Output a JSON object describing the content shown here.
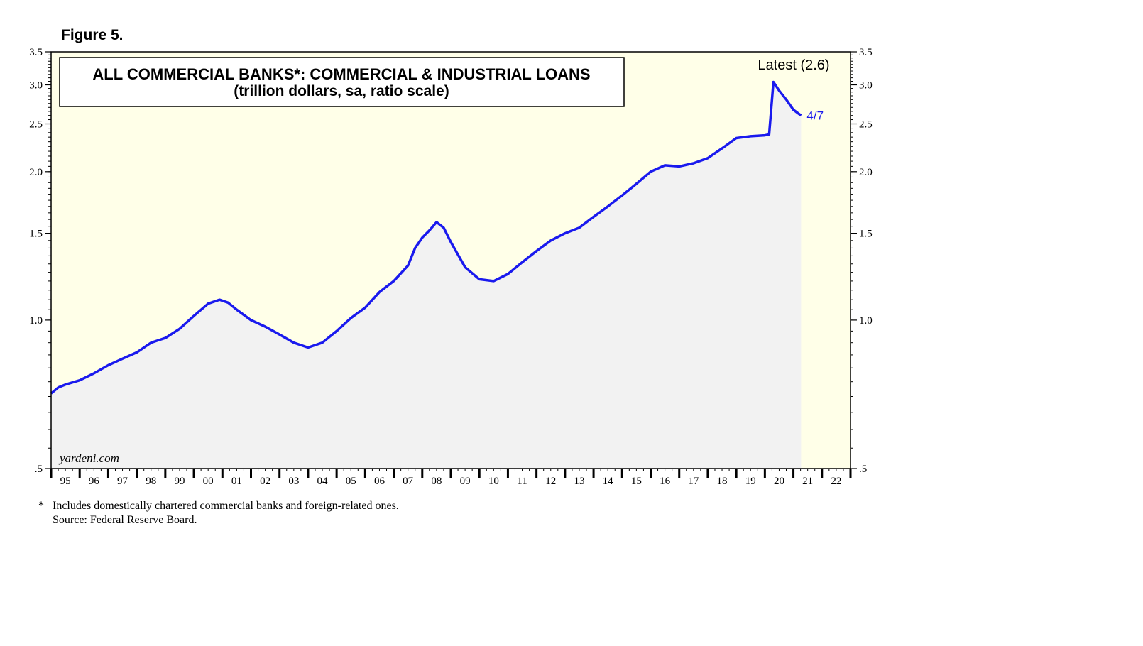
{
  "figure_label": "Figure 5.",
  "footnotes": {
    "note_marker": "*",
    "note_text": "Includes domestically chartered commercial banks and foreign-related ones.",
    "source_text": "Source: Federal Reserve Board."
  },
  "colors": {
    "plot_background": "#ffffe8",
    "area_fill": "#f2f2f2",
    "line": "#1a1aee"
  },
  "chart_data": {
    "type": "line",
    "title": "ALL COMMERCIAL BANKS*: COMMERCIAL & INDUSTRIAL LOANS",
    "subtitle": "(trillion dollars, sa, ratio scale)",
    "y_scale": "log",
    "ylim": [
      0.5,
      3.5
    ],
    "y_ticks": [
      {
        "value": 0.5,
        "label": ".5"
      },
      {
        "value": 1.0,
        "label": "1.0"
      },
      {
        "value": 1.5,
        "label": "1.5"
      },
      {
        "value": 2.0,
        "label": "2.0"
      },
      {
        "value": 2.5,
        "label": "2.5"
      },
      {
        "value": 3.0,
        "label": "3.0"
      },
      {
        "value": 3.5,
        "label": "3.5"
      }
    ],
    "xlim": [
      1995,
      2023
    ],
    "x_tick_labels": [
      "95",
      "96",
      "97",
      "98",
      "99",
      "00",
      "01",
      "02",
      "03",
      "04",
      "05",
      "06",
      "07",
      "08",
      "09",
      "10",
      "11",
      "12",
      "13",
      "14",
      "15",
      "16",
      "17",
      "18",
      "19",
      "20",
      "21",
      "22"
    ],
    "grid": false,
    "watermark": "yardeni.com",
    "latest_label": "Latest (2.6)",
    "latest_date_label": "4/7",
    "forecast_shade_start": 2021.3,
    "series": [
      {
        "x": [
          1995.0,
          1995.25,
          1995.5,
          1996.0,
          1996.5,
          1997.0,
          1997.5,
          1998.0,
          1998.5,
          1998.75,
          1999.0,
          1999.5,
          2000.0,
          2000.5,
          2000.9,
          2001.2,
          2001.5,
          2002.0,
          2002.5,
          2003.0,
          2003.5,
          2004.0,
          2004.5,
          2005.0,
          2005.5,
          2006.0,
          2006.5,
          2007.0,
          2007.5,
          2007.75,
          2008.0,
          2008.25,
          2008.5,
          2008.75,
          2009.0,
          2009.5,
          2010.0,
          2010.5,
          2011.0,
          2011.5,
          2012.0,
          2012.5,
          2013.0,
          2013.5,
          2014.0,
          2014.5,
          2015.0,
          2015.5,
          2016.0,
          2016.5,
          2017.0,
          2017.5,
          2018.0,
          2018.5,
          2019.0,
          2019.5,
          2020.0,
          2020.15,
          2020.3,
          2020.5,
          2020.75,
          2021.0,
          2021.15,
          2021.27
        ],
        "y": [
          0.71,
          0.73,
          0.74,
          0.755,
          0.78,
          0.81,
          0.835,
          0.86,
          0.9,
          0.91,
          0.92,
          0.96,
          1.02,
          1.08,
          1.1,
          1.085,
          1.05,
          1.0,
          0.97,
          0.935,
          0.9,
          0.88,
          0.9,
          0.95,
          1.01,
          1.06,
          1.14,
          1.2,
          1.29,
          1.4,
          1.47,
          1.52,
          1.58,
          1.54,
          1.44,
          1.28,
          1.21,
          1.2,
          1.24,
          1.31,
          1.38,
          1.45,
          1.5,
          1.54,
          1.62,
          1.7,
          1.79,
          1.89,
          2.0,
          2.06,
          2.05,
          2.08,
          2.13,
          2.23,
          2.34,
          2.36,
          2.37,
          2.38,
          3.04,
          2.92,
          2.8,
          2.67,
          2.63,
          2.6
        ]
      }
    ]
  }
}
